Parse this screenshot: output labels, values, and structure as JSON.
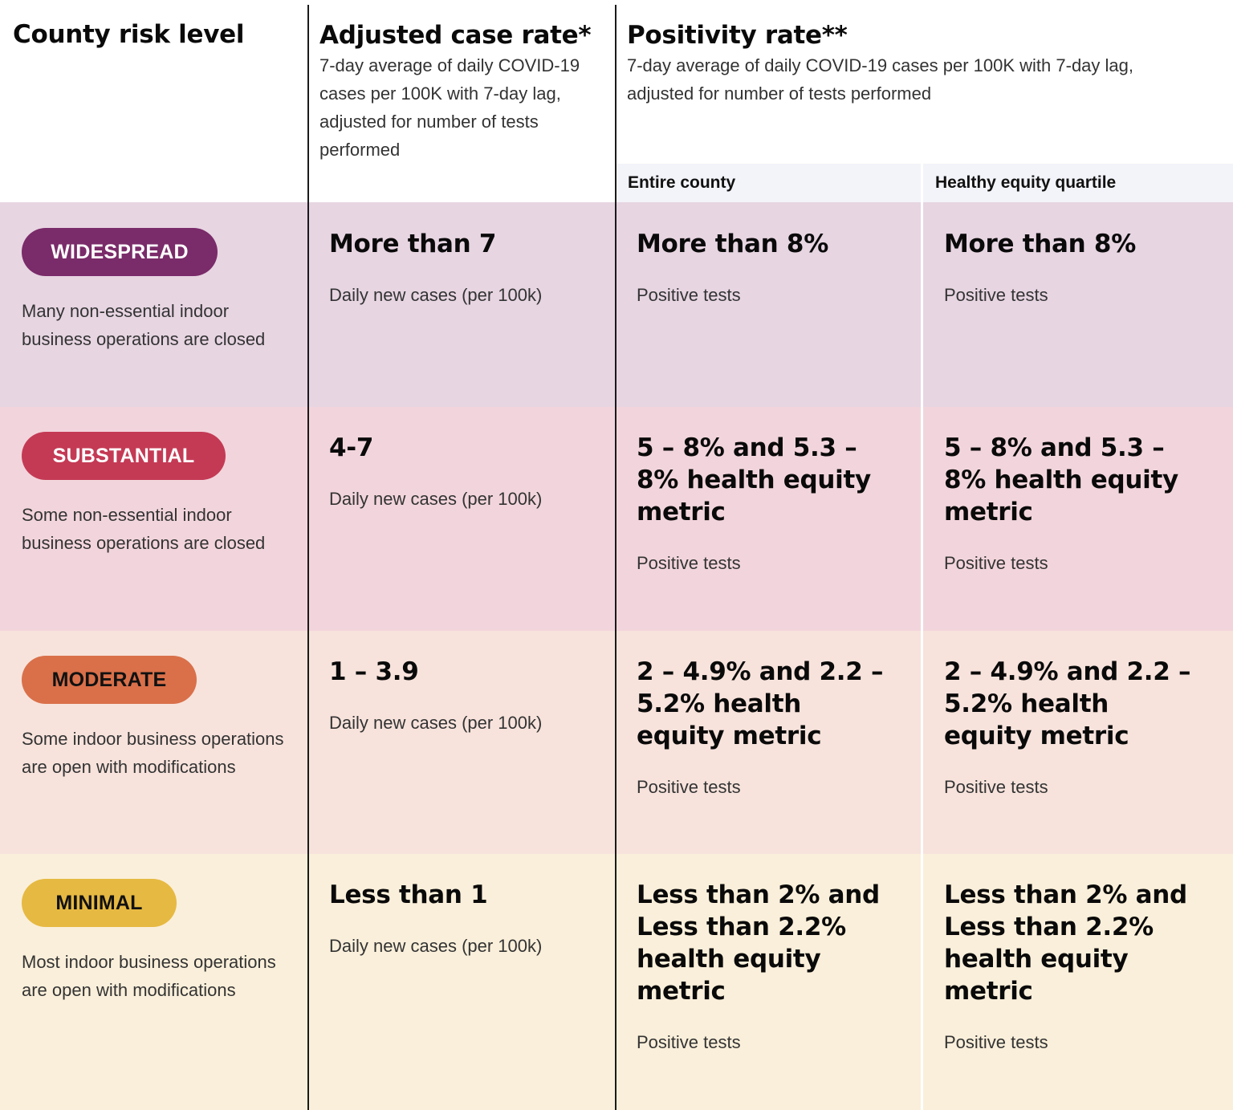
{
  "header": {
    "risk_title": "County risk level",
    "case_title": "Adjusted case rate*",
    "case_desc": "7-day average of daily COVID-19 cases per 100K with 7-day lag, adjusted for number of tests performed",
    "pos_title": "Positivity rate**",
    "pos_desc": "7-day average of daily COVID-19 cases per 100K with 7-day lag, adjusted for number of tests performed",
    "sub_entire": "Entire county",
    "sub_equity": "Healthy equity quartile"
  },
  "colors": {
    "widespread_row": "#e7d5e2",
    "substantial_row": "#f2d5dc",
    "moderate_row": "#f7e3dc",
    "minimal_row": "#faefda",
    "subheader_bg": "#f3f4f9",
    "widespread_pill": "#7a2b69",
    "substantial_pill": "#c43a55",
    "moderate_pill": "#d9704a",
    "minimal_pill": "#e6b942"
  },
  "rows": [
    {
      "level": "WIDESPREAD",
      "desc": "Many non-essential indoor business operations are closed",
      "case_value": "More than 7",
      "case_label": "Daily new cases (per 100k)",
      "entire_value": "More than 8%",
      "entire_label": "Positive tests",
      "equity_value": "More than 8%",
      "equity_label": "Positive tests"
    },
    {
      "level": "SUBSTANTIAL",
      "desc": "Some non-essential indoor business operations are closed",
      "case_value": "4-7",
      "case_label": "Daily new cases (per 100k)",
      "entire_value": "5 – 8% and 5.3 – 8% health equity metric",
      "entire_label": "Positive tests",
      "equity_value": "5 – 8% and 5.3 – 8% health equity metric",
      "equity_label": "Positive tests"
    },
    {
      "level": "MODERATE",
      "desc": "Some indoor business operations are open with modifications",
      "case_value": "1 – 3.9",
      "case_label": "Daily new cases (per 100k)",
      "entire_value": "2 – 4.9% and 2.2 – 5.2% health equity metric",
      "entire_label": "Positive tests",
      "equity_value": "2 – 4.9% and 2.2 – 5.2% health equity metric",
      "equity_label": "Positive tests"
    },
    {
      "level": "MINIMAL",
      "desc": "Most indoor business operations are open with modifications",
      "case_value": "Less than 1",
      "case_label": "Daily new cases (per 100k)",
      "entire_value": "Less than 2% and Less than 2.2% health equity metric",
      "entire_label": "Positive tests",
      "equity_value": "Less than 2% and Less than 2.2% health equity metric",
      "equity_label": "Positive tests"
    }
  ]
}
